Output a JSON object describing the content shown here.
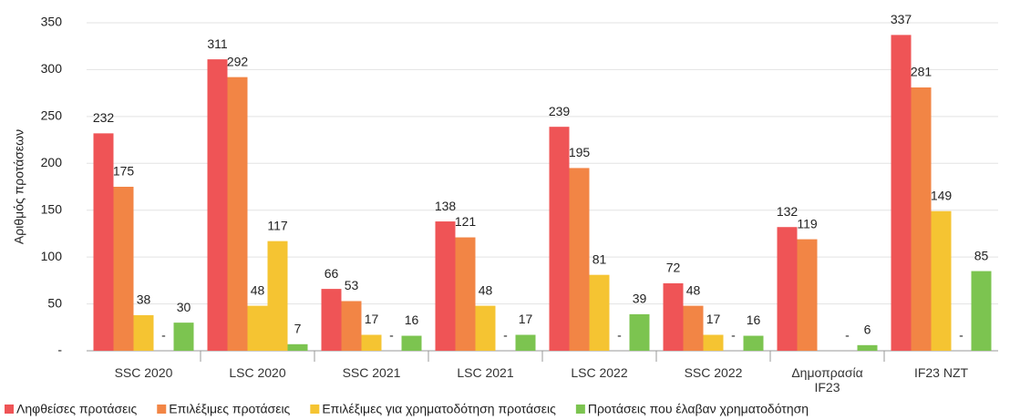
{
  "chart_data": {
    "type": "bar",
    "y_label": "Αριθμός προτάσεων",
    "categories": [
      "SSC 2020",
      "LSC 2020",
      "SSC 2021",
      "LSC 2021",
      "LSC 2022",
      "SSC 2022",
      "Δημοπρασία IF23",
      "IF23 NZT"
    ],
    "series": [
      {
        "name": "Ληφθείσες προτάσεις",
        "color": "#ef5456",
        "values": [
          232,
          311,
          66,
          138,
          239,
          72,
          132,
          337
        ]
      },
      {
        "name": "Επιλέξιμες προτάσεις",
        "color": "#f28545",
        "values": [
          175,
          292,
          53,
          121,
          195,
          48,
          119,
          281
        ]
      },
      {
        "name": "Επιλέξιμες για χρηματοδότηση προτάσεις",
        "color": "#f5c432",
        "values": [
          38,
          48,
          17,
          48,
          81,
          17,
          null,
          149
        ]
      },
      {
        "color": "#f5c432",
        "values": [
          0,
          117,
          0,
          0,
          0,
          0,
          0,
          0
        ],
        "value_labels": [
          "-",
          "117",
          "-",
          "-",
          "-",
          "-",
          "-",
          "-"
        ]
      },
      {
        "name": "Προτάσεις που έλαβαν χρηματοδότηση",
        "color": "#7cc450",
        "values": [
          30,
          7,
          16,
          17,
          39,
          16,
          6,
          85
        ]
      }
    ],
    "ylim": [
      0,
      350
    ],
    "yticks": [
      {
        "value": 0,
        "label": "-"
      },
      50,
      100,
      150,
      200,
      250,
      300,
      350
    ],
    "grid": true,
    "legend": "bottom"
  }
}
